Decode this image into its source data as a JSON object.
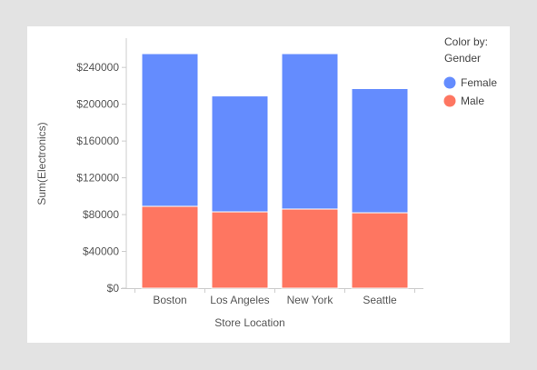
{
  "chart_data": {
    "type": "bar",
    "stacked": true,
    "xlabel": "Store Location",
    "ylabel": "Sum(Electronics)",
    "categories": [
      "Boston",
      "Los Angeles",
      "New York",
      "Seattle"
    ],
    "series": [
      {
        "name": "Male",
        "color": "#fe7661",
        "values": [
          89000,
          83000,
          86000,
          82000
        ]
      },
      {
        "name": "Female",
        "color": "#648cfe",
        "values": [
          166000,
          126000,
          169000,
          135000
        ]
      }
    ],
    "ylim": [
      0,
      265000
    ],
    "yticks": [
      0,
      40000,
      80000,
      120000,
      160000,
      200000,
      240000
    ],
    "ytick_labels": [
      "$0",
      "$40000",
      "$80000",
      "$120000",
      "$160000",
      "$200000",
      "$240000"
    ],
    "legend": {
      "title_line1": "Color by:",
      "title_line2": "Gender",
      "items": [
        {
          "label": "Female",
          "color": "#648cfe"
        },
        {
          "label": "Male",
          "color": "#fe7661"
        }
      ],
      "placement": "right"
    },
    "grid": false
  }
}
